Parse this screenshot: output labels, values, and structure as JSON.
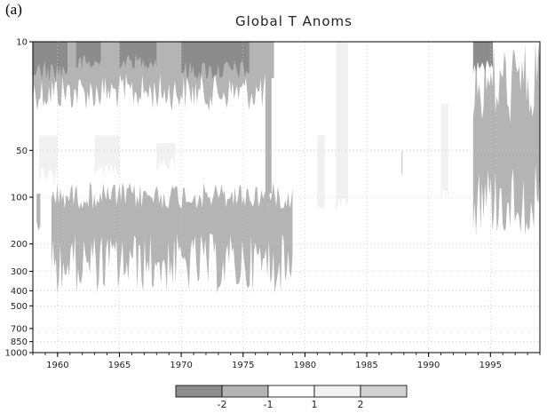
{
  "panel_label": "(a)",
  "colors": {
    "le_m2": "#8c8c8c",
    "m2_m1": "#b4b4b4",
    "m1_1": "#ffffff",
    "1_2": "#f1f1f1",
    "ge_2": "#d2d2d2",
    "grid": "#c8c8c8",
    "axis": "#000000"
  },
  "chart_data": {
    "type": "heatmap",
    "title": "Global T Anoms",
    "xlabel": "",
    "ylabel": "",
    "xlim": [
      1958,
      1999
    ],
    "ylim": [
      1000,
      10
    ],
    "y_scale": "log",
    "grid": true,
    "x_ticks": [
      1960,
      1965,
      1970,
      1975,
      1980,
      1985,
      1990,
      1995
    ],
    "y_ticks": [
      10,
      50,
      100,
      200,
      300,
      400,
      500,
      700,
      850,
      1000
    ],
    "colorbar": {
      "placement": "bottom",
      "tick_labels": [
        "-2",
        "-1",
        "1",
        "2"
      ],
      "bins": [
        "le_m2",
        "m2_m1",
        "m1_1",
        "1_2",
        "ge_2"
      ]
    },
    "regions": [
      {
        "category": "m2_m1",
        "x_start": 1958.0,
        "x_end": 1977.5,
        "p_top": 10,
        "p_bottom_range": [
          16,
          28
        ]
      },
      {
        "category": "le_m2",
        "x_start": 1958.0,
        "x_end": 1960.8,
        "p_top": 10,
        "p_bottom_range": [
          13,
          18
        ]
      },
      {
        "category": "le_m2",
        "x_start": 1961.5,
        "x_end": 1963.5,
        "p_top": 10,
        "p_bottom_range": [
          12,
          16
        ]
      },
      {
        "category": "le_m2",
        "x_start": 1965.0,
        "x_end": 1968.0,
        "p_top": 10,
        "p_bottom_range": [
          12,
          15
        ]
      },
      {
        "category": "le_m2",
        "x_start": 1970.0,
        "x_end": 1975.5,
        "p_top": 10,
        "p_bottom_range": [
          13,
          18
        ]
      },
      {
        "category": "m2_m1",
        "x_start": 1958.3,
        "x_end": 1958.6,
        "p_top": 95,
        "p_bottom_range": [
          140,
          170
        ]
      },
      {
        "category": "m2_m1",
        "x_start": 1959.5,
        "x_end": 1979.0,
        "p_top_range": [
          80,
          120
        ],
        "p_bottom_range": [
          170,
          420
        ]
      },
      {
        "category": "m2_m1",
        "x_start": 1976.8,
        "x_end": 1977.3,
        "p_top": 10,
        "p_bottom_range": [
          80,
          120
        ]
      },
      {
        "category": "m2_m1",
        "x_start": 1993.6,
        "x_end": 1999.0,
        "p_top_range": [
          10,
          35
        ],
        "p_bottom_range": [
          60,
          180
        ]
      },
      {
        "category": "le_m2",
        "x_start": 1993.6,
        "x_end": 1995.2,
        "p_top": 10,
        "p_bottom_range": [
          13,
          17
        ]
      },
      {
        "category": "1_2",
        "x_start": 1958.5,
        "x_end": 1960.0,
        "p_top": 40,
        "p_bottom_range": [
          60,
          90
        ]
      },
      {
        "category": "1_2",
        "x_start": 1963.0,
        "x_end": 1965.0,
        "p_top": 40,
        "p_bottom_range": [
          60,
          75
        ]
      },
      {
        "category": "1_2",
        "x_start": 1968.0,
        "x_end": 1969.5,
        "p_top": 45,
        "p_bottom_range": [
          55,
          70
        ]
      },
      {
        "category": "1_2",
        "x_start": 1981.0,
        "x_end": 1981.6,
        "p_top": 40,
        "p_bottom_range": [
          110,
          120
        ]
      },
      {
        "category": "1_2",
        "x_start": 1982.5,
        "x_end": 1983.5,
        "p_top": 10,
        "p_bottom_range": [
          100,
          130
        ]
      },
      {
        "category": "1_2",
        "x_start": 1991.0,
        "x_end": 1991.6,
        "p_top": 25,
        "p_bottom_range": [
          90,
          110
        ]
      },
      {
        "category": "ge_2",
        "x_start": 1987.8,
        "x_end": 1987.9,
        "p_top": 50,
        "p_bottom_range": [
          65,
          75
        ]
      }
    ]
  }
}
